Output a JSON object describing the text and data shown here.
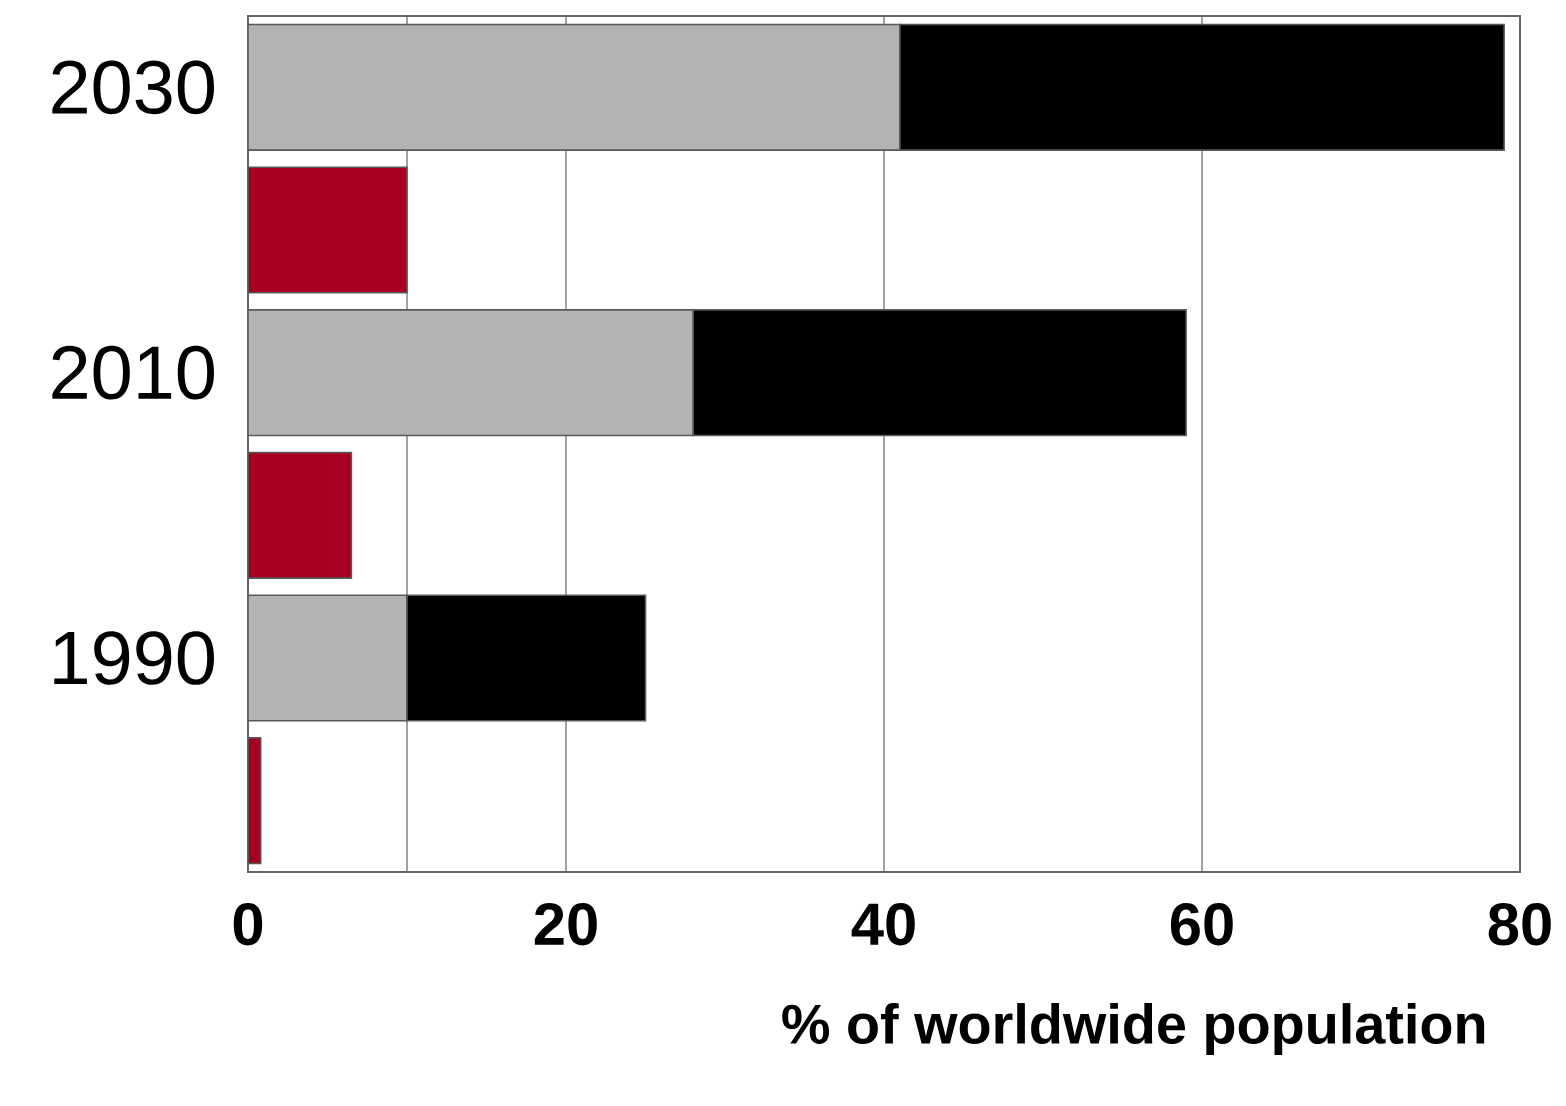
{
  "chart_data": {
    "type": "bar",
    "orientation": "horizontal",
    "stacked": true,
    "xlabel": "% of worldwide population",
    "categories": [
      "2030",
      null,
      "2010",
      null,
      "1990",
      null
    ],
    "series": [
      {
        "color": "#b3b3b3",
        "values": [
          41,
          null,
          28,
          null,
          10,
          null
        ]
      },
      {
        "color": "#000000",
        "values": [
          38,
          null,
          31,
          null,
          15,
          null
        ]
      },
      {
        "color": "#a50021",
        "values": [
          null,
          10,
          null,
          6.5,
          null,
          0.8
        ]
      }
    ],
    "xlim": [
      0,
      80
    ],
    "xticks": [
      0,
      {
        "value": 10,
        "label": null
      },
      20,
      40,
      60,
      80
    ],
    "grid": "x"
  }
}
